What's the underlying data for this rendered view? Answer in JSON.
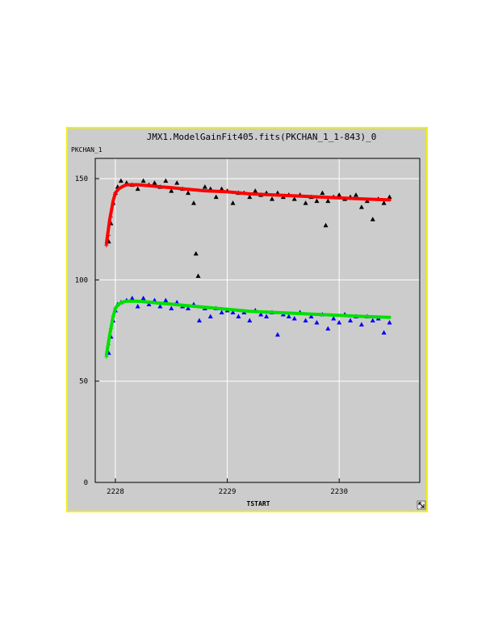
{
  "window": {
    "title": "JMX1.ModelGainFit405.fits(PKCHAN_1_1-843)_0",
    "border_color": "#f2f200",
    "background": "#cccccc",
    "resize_icon": "resize-arrow-icon"
  },
  "chart_data": {
    "type": "scatter",
    "title": "JMX1.ModelGainFit405.fits(PKCHAN_1_1-843)_0",
    "xlabel": "TSTART",
    "ylabel": "PKCHAN_1",
    "xlim": [
      2227.82,
      2230.72
    ],
    "ylim": [
      0,
      160
    ],
    "x_ticks": [
      2228,
      2229,
      2230
    ],
    "x_tick_labels": [
      "2228",
      "2229",
      "2230"
    ],
    "y_ticks": [
      0,
      50,
      100,
      150
    ],
    "y_tick_labels": [
      "0",
      "50",
      "100",
      "150"
    ],
    "grid": true,
    "series": [
      {
        "marker": "triangle",
        "color": "#000000",
        "x": [
          2227.94,
          2227.96,
          2227.98,
          2228.0,
          2228.02,
          2228.05,
          2228.1,
          2228.15,
          2228.2,
          2228.25,
          2228.3,
          2228.35,
          2228.4,
          2228.45,
          2228.5,
          2228.55,
          2228.6,
          2228.65,
          2228.7,
          2228.72,
          2228.74,
          2228.8,
          2228.85,
          2228.9,
          2228.95,
          2229.0,
          2229.05,
          2229.1,
          2229.15,
          2229.2,
          2229.25,
          2229.3,
          2229.35,
          2229.4,
          2229.45,
          2229.5,
          2229.55,
          2229.6,
          2229.65,
          2229.7,
          2229.75,
          2229.8,
          2229.85,
          2229.88,
          2229.9,
          2229.95,
          2230.0,
          2230.05,
          2230.1,
          2230.15,
          2230.2,
          2230.25,
          2230.3,
          2230.35,
          2230.4,
          2230.45
        ],
        "y": [
          119,
          128,
          138,
          143,
          146,
          149,
          148,
          147,
          145,
          149,
          147,
          148,
          146,
          149,
          144,
          148,
          145,
          143,
          138,
          113,
          102,
          146,
          145,
          141,
          145,
          144,
          138,
          143,
          143,
          141,
          144,
          142,
          143,
          140,
          143,
          141,
          142,
          140,
          142,
          138,
          141,
          139,
          143,
          127,
          139,
          141,
          142,
          140,
          141,
          142,
          136,
          139,
          130,
          140,
          138,
          141
        ]
      },
      {
        "marker": "triangle",
        "color": "#0000ff",
        "x": [
          2227.94,
          2227.96,
          2227.98,
          2228.0,
          2228.02,
          2228.05,
          2228.1,
          2228.15,
          2228.2,
          2228.25,
          2228.3,
          2228.35,
          2228.4,
          2228.45,
          2228.5,
          2228.55,
          2228.6,
          2228.65,
          2228.7,
          2228.75,
          2228.8,
          2228.85,
          2228.9,
          2228.95,
          2229.0,
          2229.05,
          2229.1,
          2229.15,
          2229.2,
          2229.25,
          2229.3,
          2229.35,
          2229.4,
          2229.45,
          2229.5,
          2229.55,
          2229.6,
          2229.65,
          2229.7,
          2229.75,
          2229.8,
          2229.85,
          2229.9,
          2229.95,
          2230.0,
          2230.05,
          2230.1,
          2230.15,
          2230.2,
          2230.25,
          2230.3,
          2230.35,
          2230.4,
          2230.45
        ],
        "y": [
          64,
          72,
          80,
          85,
          88,
          89,
          90,
          91,
          87,
          91,
          88,
          90,
          87,
          90,
          86,
          89,
          87,
          86,
          88,
          80,
          86,
          82,
          86,
          84,
          85,
          84,
          82,
          84,
          80,
          85,
          83,
          82,
          84,
          73,
          83,
          82,
          81,
          84,
          80,
          82,
          79,
          83,
          76,
          81,
          79,
          83,
          80,
          82,
          78,
          82,
          80,
          81,
          74,
          79
        ]
      },
      {
        "marker": "plus",
        "color": "#ff0000",
        "x": [
          2227.92,
          2227.94,
          2227.96,
          2227.98,
          2228.0
        ],
        "y": [
          117,
          122,
          131,
          138,
          143
        ]
      },
      {
        "marker": "plus",
        "color": "#00e000",
        "x": [
          2227.92,
          2227.94,
          2227.96,
          2227.98,
          2228.0
        ],
        "y": [
          62,
          68,
          76,
          82,
          86
        ]
      },
      {
        "marker": "line",
        "color": "#ff0000",
        "x": [
          2227.92,
          2227.95,
          2227.98,
          2228.0,
          2228.03,
          2228.06,
          2228.1,
          2228.15,
          2228.2,
          2228.3,
          2228.4,
          2228.5,
          2228.6,
          2228.8,
          2229.0,
          2229.2,
          2229.4,
          2229.6,
          2229.8,
          2230.0,
          2230.2,
          2230.45
        ],
        "y": [
          118,
          130,
          139,
          143,
          145,
          146,
          147,
          147,
          147,
          146.5,
          146,
          145.5,
          145,
          144,
          143.5,
          142.5,
          142,
          141.5,
          141,
          140.5,
          140,
          139.5
        ]
      },
      {
        "marker": "line",
        "color": "#00e000",
        "x": [
          2227.92,
          2227.95,
          2227.98,
          2228.0,
          2228.03,
          2228.06,
          2228.1,
          2228.15,
          2228.2,
          2228.3,
          2228.4,
          2228.5,
          2228.6,
          2228.8,
          2229.0,
          2229.2,
          2229.4,
          2229.6,
          2229.8,
          2230.0,
          2230.2,
          2230.45
        ],
        "y": [
          63,
          73,
          82,
          86,
          88,
          89,
          89.5,
          89.5,
          89.5,
          89,
          88.5,
          88,
          87.5,
          86.5,
          85.5,
          84.5,
          84,
          83.5,
          83,
          82.5,
          82,
          81.5
        ]
      }
    ]
  }
}
